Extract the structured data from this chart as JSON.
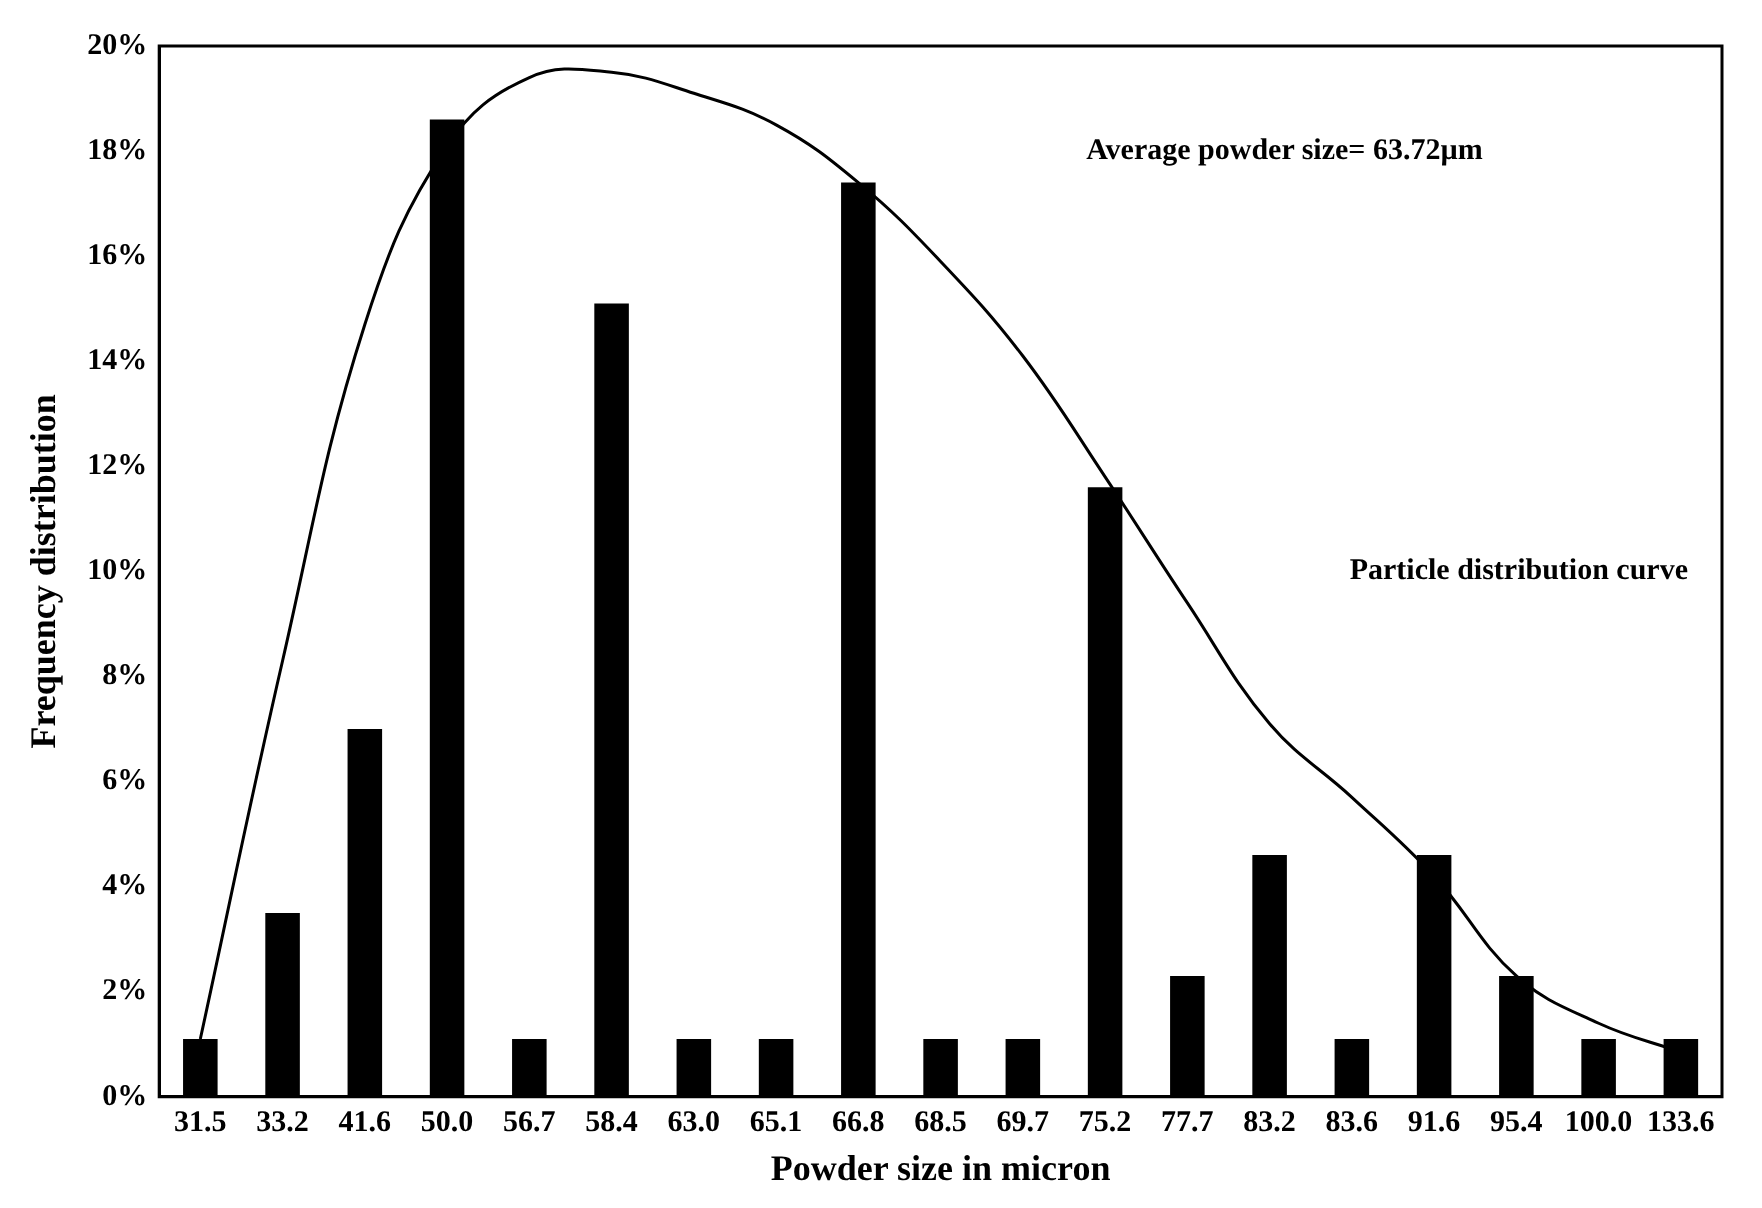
{
  "chart_data": {
    "type": "bar",
    "xlabel": "Powder size in micron",
    "ylabel": "Frequency distribution",
    "categories": [
      "31.5",
      "33.2",
      "41.6",
      "50.0",
      "56.7",
      "58.4",
      "63.0",
      "65.1",
      "66.8",
      "68.5",
      "69.7",
      "75.2",
      "77.7",
      "83.2",
      "83.6",
      "91.6",
      "95.4",
      "100.0",
      "133.6"
    ],
    "series": [
      {
        "color": "#000000",
        "values": [
          1.1,
          3.5,
          7.0,
          18.6,
          1.1,
          15.1,
          1.1,
          1.1,
          17.4,
          1.1,
          1.1,
          11.6,
          2.3,
          4.6,
          1.1,
          4.6,
          2.3,
          1.1,
          1.1
        ]
      },
      {
        "type": "line",
        "color": "#000000",
        "marker": "none",
        "line_style": "solid",
        "values": [
          1.1,
          8.3,
          14.7,
          18.1,
          19.4,
          19.5,
          19.1,
          18.5,
          17.4,
          15.9,
          14.1,
          11.8,
          9.4,
          7.1,
          5.7,
          4.2,
          2.3,
          1.4,
          0.85
        ]
      }
    ],
    "ylim": [
      0,
      20
    ],
    "yticks": [
      {
        "value": 0,
        "label": "0%"
      },
      {
        "value": 2,
        "label": "2%"
      },
      {
        "value": 4,
        "label": "4%"
      },
      {
        "value": 6,
        "label": "6%"
      },
      {
        "value": 8,
        "label": "8%"
      },
      {
        "value": 10,
        "label": "10%"
      },
      {
        "value": 12,
        "label": "12%"
      },
      {
        "value": 14,
        "label": "14%"
      },
      {
        "value": 16,
        "label": "16%"
      },
      {
        "value": 18,
        "label": "18%"
      },
      {
        "value": 20,
        "label": "20%"
      }
    ],
    "grid": false,
    "legend": false,
    "annotations": [
      "Average powder size= 63.72µm",
      "Particle distribution curve"
    ]
  }
}
